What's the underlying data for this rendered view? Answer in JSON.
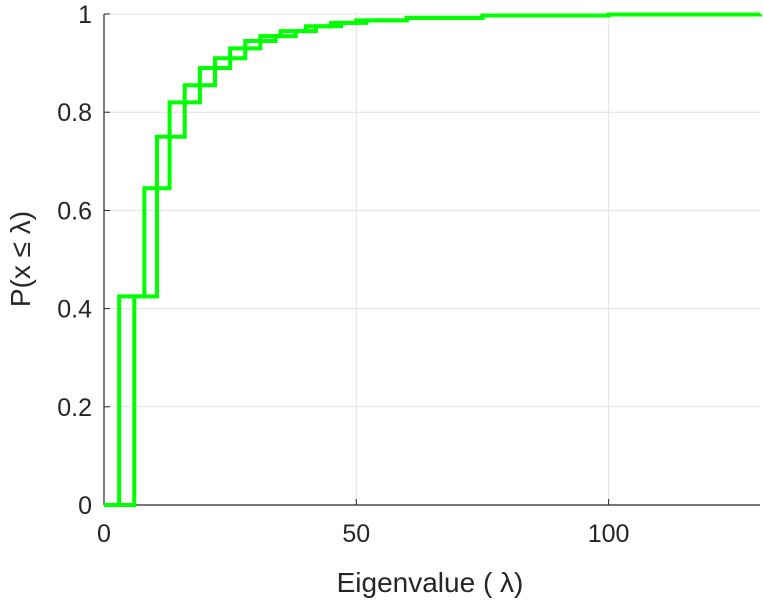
{
  "chart_data": {
    "type": "line",
    "title": "",
    "xlabel": "Eigenvalue (   λ)",
    "ylabel": "P(x ≤ λ)",
    "xlim": [
      0,
      130
    ],
    "ylim": [
      0,
      1
    ],
    "x_ticks": [
      "0",
      "50",
      "100"
    ],
    "y_ticks": [
      "0",
      "0.2",
      "0.4",
      "0.6",
      "0.8",
      "1"
    ],
    "x_tick_values": [
      0,
      50,
      100
    ],
    "y_tick_values": [
      0,
      0.2,
      0.4,
      0.6,
      0.8,
      1
    ],
    "grid": true,
    "step": true,
    "series": [
      {
        "color": "#00ff00",
        "x": [
          0,
          3,
          8,
          10.5,
          13,
          16,
          19,
          22,
          25,
          28,
          31,
          35,
          40,
          45,
          50,
          60,
          75,
          100,
          130
        ],
        "y": [
          0,
          0.425,
          0.645,
          0.75,
          0.82,
          0.855,
          0.89,
          0.91,
          0.93,
          0.945,
          0.955,
          0.965,
          0.975,
          0.982,
          0.987,
          0.992,
          0.997,
          0.999,
          1.0
        ]
      },
      {
        "color": "#00ff00",
        "x": [
          0,
          6,
          10.5,
          13,
          16,
          19,
          22,
          25,
          28,
          31,
          34,
          38,
          42,
          47,
          52,
          60,
          75,
          100,
          130
        ],
        "y": [
          0,
          0.425,
          0.645,
          0.75,
          0.82,
          0.855,
          0.89,
          0.91,
          0.93,
          0.945,
          0.955,
          0.965,
          0.975,
          0.982,
          0.987,
          0.992,
          0.997,
          0.999,
          1.0
        ]
      }
    ]
  }
}
